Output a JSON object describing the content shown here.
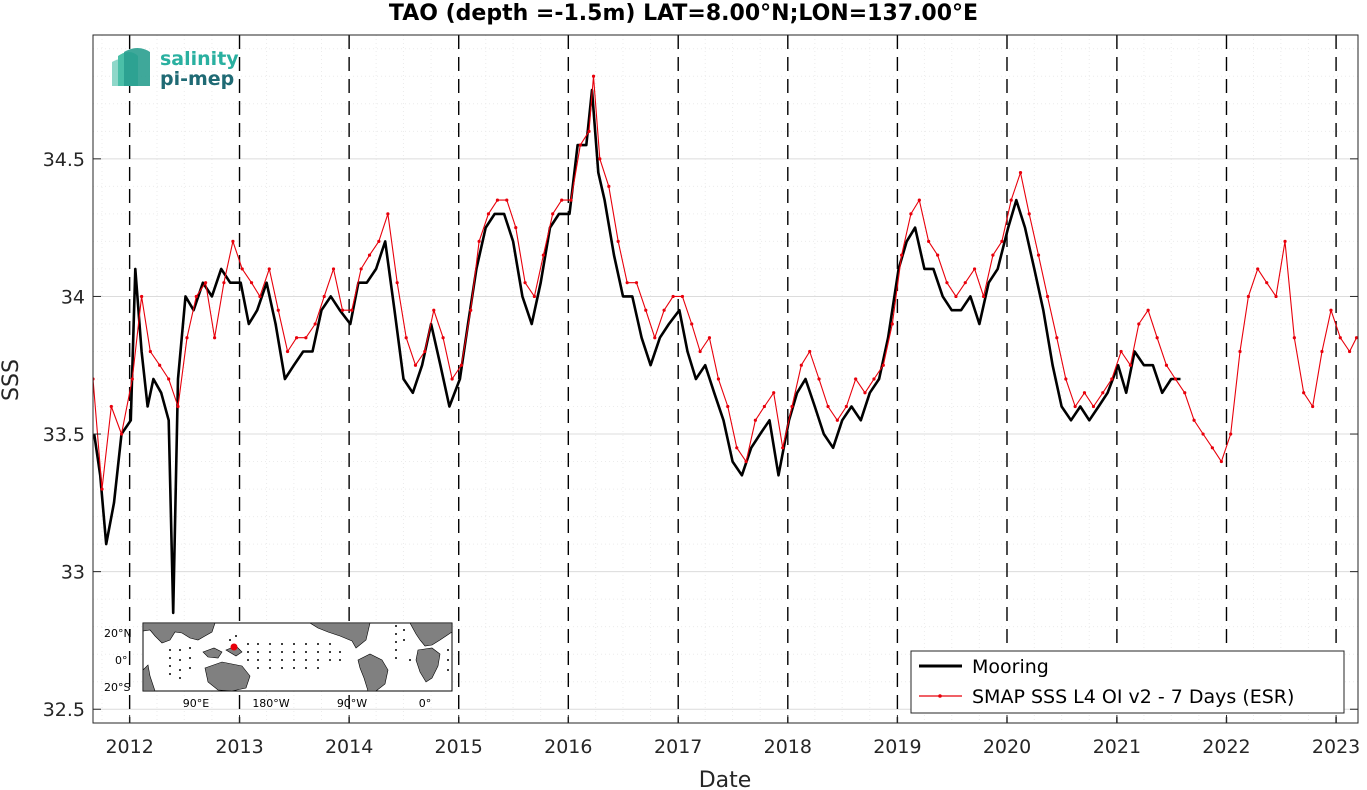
{
  "chart_data": {
    "type": "line",
    "title": "TAO (depth =-1.5m) LAT=8.00°N;LON=137.00°E",
    "xlabel": "Date",
    "ylabel": "SSS",
    "xlim": [
      "2011-09-01",
      "2023-03-15"
    ],
    "ylim": [
      32.45,
      34.95
    ],
    "x_ticks": [
      "2012",
      "2013",
      "2014",
      "2015",
      "2016",
      "2017",
      "2018",
      "2019",
      "2020",
      "2021",
      "2022",
      "2023"
    ],
    "y_ticks": [
      "32.5",
      "33",
      "33.5",
      "34",
      "34.5"
    ],
    "grid": true,
    "minor_grid": true,
    "year_boundary_lines": "dashed vertical at each January 1",
    "legend_position": "bottom-right",
    "series": [
      {
        "name": "Mooring",
        "color": "#000000",
        "line_width": "thick",
        "x": [
          "2011-09-05",
          "2011-09-25",
          "2011-10-15",
          "2011-11-10",
          "2011-12-05",
          "2012-01-05",
          "2012-01-20",
          "2012-02-10",
          "2012-03-01",
          "2012-03-20",
          "2012-04-15",
          "2012-05-10",
          "2012-05-25",
          "2012-06-10",
          "2012-07-05",
          "2012-08-01",
          "2012-09-01",
          "2012-10-01",
          "2012-11-01",
          "2012-12-01",
          "2013-01-05",
          "2013-02-01",
          "2013-03-01",
          "2013-04-01",
          "2013-05-01",
          "2013-06-01",
          "2013-07-01",
          "2013-08-01",
          "2013-09-01",
          "2013-10-01",
          "2013-11-01",
          "2013-12-01",
          "2014-01-05",
          "2014-02-01",
          "2014-03-01",
          "2014-04-01",
          "2014-05-01",
          "2014-06-01",
          "2014-07-01",
          "2014-08-01",
          "2014-09-01",
          "2014-10-01",
          "2014-11-01",
          "2014-12-01",
          "2015-01-05",
          "2015-02-01",
          "2015-03-01",
          "2015-04-01",
          "2015-05-01",
          "2015-06-01",
          "2015-07-01",
          "2015-08-01",
          "2015-09-01",
          "2015-10-01",
          "2015-11-01",
          "2015-12-01",
          "2016-01-05",
          "2016-02-01",
          "2016-03-01",
          "2016-03-20",
          "2016-04-10",
          "2016-05-01",
          "2016-06-01",
          "2016-07-01",
          "2016-08-01",
          "2016-09-01",
          "2016-10-01",
          "2016-11-01",
          "2016-12-01",
          "2017-01-05",
          "2017-02-01",
          "2017-03-01",
          "2017-04-01",
          "2017-05-01",
          "2017-06-01",
          "2017-07-01",
          "2017-08-01",
          "2017-09-01",
          "2017-10-01",
          "2017-11-01",
          "2017-12-01",
          "2018-01-05",
          "2018-02-01",
          "2018-03-01",
          "2018-04-01",
          "2018-05-01",
          "2018-06-01",
          "2018-07-01",
          "2018-08-01",
          "2018-09-01",
          "2018-10-01",
          "2018-11-01",
          "2018-12-01",
          "2019-01-05",
          "2019-02-01",
          "2019-03-01",
          "2019-04-01",
          "2019-05-01",
          "2019-06-01",
          "2019-07-01",
          "2019-08-01",
          "2019-09-01",
          "2019-10-01",
          "2019-11-01",
          "2019-12-01",
          "2020-01-05",
          "2020-02-01",
          "2020-03-01",
          "2020-04-01",
          "2020-05-01",
          "2020-06-01",
          "2020-07-01",
          "2020-08-01",
          "2020-09-01",
          "2020-10-01",
          "2020-11-01",
          "2020-12-01",
          "2021-01-05",
          "2021-02-01",
          "2021-03-01",
          "2021-04-01",
          "2021-05-01",
          "2021-06-01",
          "2021-07-01",
          "2021-08-01"
        ],
        "values": [
          33.5,
          33.35,
          33.1,
          33.25,
          33.5,
          33.55,
          34.1,
          33.8,
          33.6,
          33.7,
          33.65,
          33.55,
          32.85,
          33.7,
          34.0,
          33.95,
          34.05,
          34.0,
          34.1,
          34.05,
          34.05,
          33.9,
          33.95,
          34.05,
          33.9,
          33.7,
          33.75,
          33.8,
          33.8,
          33.95,
          34.0,
          33.95,
          33.9,
          34.05,
          34.05,
          34.1,
          34.2,
          33.95,
          33.7,
          33.65,
          33.75,
          33.9,
          33.75,
          33.6,
          33.7,
          33.9,
          34.1,
          34.25,
          34.3,
          34.3,
          34.2,
          34.0,
          33.9,
          34.05,
          34.25,
          34.3,
          34.3,
          34.55,
          34.55,
          34.75,
          34.45,
          34.35,
          34.15,
          34.0,
          34.0,
          33.85,
          33.75,
          33.85,
          33.9,
          33.95,
          33.8,
          33.7,
          33.75,
          33.65,
          33.55,
          33.4,
          33.35,
          33.45,
          33.5,
          33.55,
          33.35,
          33.55,
          33.65,
          33.7,
          33.6,
          33.5,
          33.45,
          33.55,
          33.6,
          33.55,
          33.65,
          33.7,
          33.85,
          34.1,
          34.2,
          34.25,
          34.1,
          34.1,
          34.0,
          33.95,
          33.95,
          34.0,
          33.9,
          34.05,
          34.1,
          34.25,
          34.35,
          34.25,
          34.1,
          33.95,
          33.75,
          33.6,
          33.55,
          33.6,
          33.55,
          33.6,
          33.65,
          33.75,
          33.65,
          33.8,
          33.75,
          33.75,
          33.65,
          33.7,
          33.7
        ]
      },
      {
        "name": "SMAP SSS L4 OI v2 - 7 Days (ESR)",
        "color": "#e8000b",
        "line_width": "thin",
        "marker": "dot",
        "x": [
          "2011-09-01",
          "2011-10-01",
          "2011-11-01",
          "2011-12-05",
          "2012-01-10",
          "2012-02-10",
          "2012-03-10",
          "2012-04-10",
          "2012-05-10",
          "2012-06-10",
          "2012-07-10",
          "2012-08-10",
          "2012-09-10",
          "2012-10-10",
          "2012-11-10",
          "2012-12-10",
          "2013-01-10",
          "2013-02-10",
          "2013-03-10",
          "2013-04-10",
          "2013-05-10",
          "2013-06-10",
          "2013-07-10",
          "2013-08-10",
          "2013-09-10",
          "2013-10-10",
          "2013-11-10",
          "2013-12-10",
          "2014-01-10",
          "2014-02-10",
          "2014-03-10",
          "2014-04-10",
          "2014-05-10",
          "2014-06-10",
          "2014-07-10",
          "2014-08-10",
          "2014-09-10",
          "2014-10-10",
          "2014-11-10",
          "2014-12-10",
          "2015-01-10",
          "2015-02-10",
          "2015-03-10",
          "2015-04-10",
          "2015-05-10",
          "2015-06-10",
          "2015-07-10",
          "2015-08-10",
          "2015-09-10",
          "2015-10-10",
          "2015-11-10",
          "2015-12-10",
          "2016-01-10",
          "2016-02-10",
          "2016-03-10",
          "2016-03-25",
          "2016-04-15",
          "2016-05-15",
          "2016-06-15",
          "2016-07-15",
          "2016-08-15",
          "2016-09-15",
          "2016-10-15",
          "2016-11-15",
          "2016-12-15",
          "2017-01-15",
          "2017-02-15",
          "2017-03-15",
          "2017-04-15",
          "2017-05-15",
          "2017-06-15",
          "2017-07-15",
          "2017-08-15",
          "2017-09-15",
          "2017-10-15",
          "2017-11-15",
          "2017-12-15",
          "2018-01-15",
          "2018-02-15",
          "2018-03-15",
          "2018-04-15",
          "2018-05-15",
          "2018-06-15",
          "2018-07-15",
          "2018-08-15",
          "2018-09-15",
          "2018-10-15",
          "2018-11-15",
          "2018-12-15",
          "2019-01-15",
          "2019-02-15",
          "2019-03-15",
          "2019-04-15",
          "2019-05-15",
          "2019-06-15",
          "2019-07-15",
          "2019-08-15",
          "2019-09-15",
          "2019-10-15",
          "2019-11-15",
          "2019-12-15",
          "2020-01-15",
          "2020-02-15",
          "2020-03-15",
          "2020-04-15",
          "2020-05-15",
          "2020-06-15",
          "2020-07-15",
          "2020-08-15",
          "2020-09-15",
          "2020-10-15",
          "2020-11-15",
          "2020-12-15",
          "2021-01-15",
          "2021-02-15",
          "2021-03-15",
          "2021-04-15",
          "2021-05-15",
          "2021-06-15",
          "2021-07-15",
          "2021-08-15",
          "2021-09-15",
          "2021-10-15",
          "2021-11-15",
          "2021-12-15",
          "2022-01-15",
          "2022-02-15",
          "2022-03-15",
          "2022-04-15",
          "2022-05-15",
          "2022-06-15",
          "2022-07-15",
          "2022-08-15",
          "2022-09-15",
          "2022-10-15",
          "2022-11-15",
          "2022-12-15",
          "2023-01-15",
          "2023-02-15",
          "2023-03-10"
        ],
        "values": [
          33.7,
          33.3,
          33.6,
          33.5,
          33.7,
          34.0,
          33.8,
          33.75,
          33.7,
          33.6,
          33.85,
          34.0,
          34.05,
          33.85,
          34.05,
          34.2,
          34.1,
          34.05,
          34.0,
          34.1,
          33.95,
          33.8,
          33.85,
          33.85,
          33.9,
          34.0,
          34.1,
          33.95,
          33.95,
          34.1,
          34.15,
          34.2,
          34.3,
          34.05,
          33.85,
          33.75,
          33.8,
          33.95,
          33.85,
          33.7,
          33.75,
          33.95,
          34.2,
          34.3,
          34.35,
          34.35,
          34.25,
          34.05,
          34.0,
          34.15,
          34.3,
          34.35,
          34.35,
          34.55,
          34.6,
          34.8,
          34.5,
          34.4,
          34.2,
          34.05,
          34.05,
          33.95,
          33.85,
          33.95,
          34.0,
          34.0,
          33.9,
          33.8,
          33.85,
          33.7,
          33.6,
          33.45,
          33.4,
          33.55,
          33.6,
          33.65,
          33.45,
          33.6,
          33.75,
          33.8,
          33.7,
          33.6,
          33.55,
          33.6,
          33.7,
          33.65,
          33.7,
          33.75,
          33.9,
          34.15,
          34.3,
          34.35,
          34.2,
          34.15,
          34.05,
          34.0,
          34.05,
          34.1,
          34.0,
          34.15,
          34.2,
          34.35,
          34.45,
          34.3,
          34.15,
          34.0,
          33.85,
          33.7,
          33.6,
          33.65,
          33.6,
          33.65,
          33.7,
          33.8,
          33.75,
          33.9,
          33.95,
          33.85,
          33.75,
          33.7,
          33.65,
          33.55,
          33.5,
          33.45,
          33.4,
          33.5,
          33.8,
          34.0,
          34.1,
          34.05,
          34.0,
          34.2,
          33.85,
          33.65,
          33.6,
          33.8,
          33.95,
          33.85,
          33.8,
          33.85
        ]
      }
    ],
    "inset_map": {
      "y_labels": [
        "20°N",
        "0°",
        "20°S"
      ],
      "x_labels": [
        "90°E",
        "180°W",
        "90°W",
        "0°"
      ],
      "marker_color": "#e8000b"
    },
    "logo": {
      "line1": "salinity",
      "line2": "pi-mep",
      "color1": "#2ab0a0",
      "color2": "#1f6a74"
    }
  }
}
